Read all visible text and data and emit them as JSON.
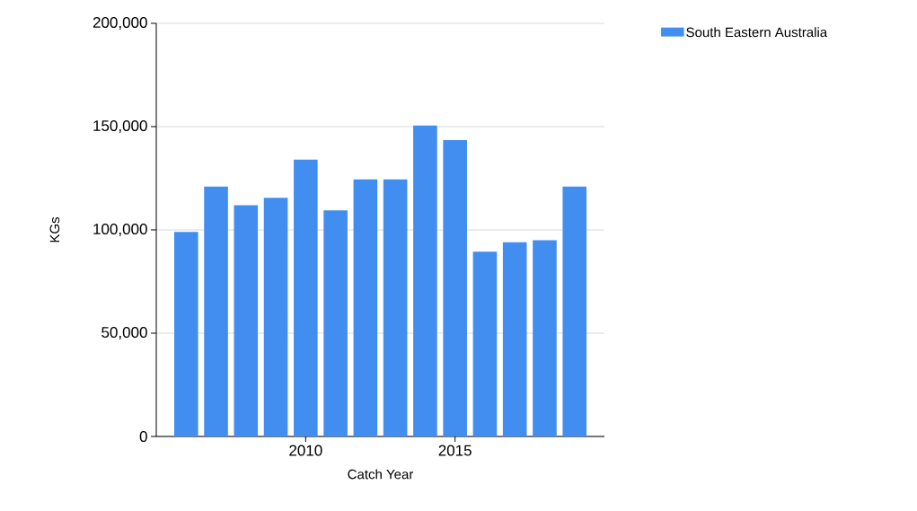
{
  "chart_data": {
    "type": "bar",
    "xlabel": "Catch Year",
    "ylabel": "KGs",
    "x": [
      2006,
      2007,
      2008,
      2009,
      2010,
      2011,
      2012,
      2013,
      2014,
      2015,
      2016,
      2017,
      2018,
      2019
    ],
    "series": [
      {
        "name": "South Eastern Australia",
        "color": "#428ef0",
        "values": [
          99000,
          121000,
          112000,
          115500,
          134000,
          109500,
          124500,
          124500,
          150500,
          143500,
          89500,
          94000,
          95000,
          121000
        ]
      }
    ],
    "xlim": [
      2005,
      2020
    ],
    "xticks": [
      2010,
      2015
    ],
    "ylim": [
      0,
      200000
    ],
    "yticks": [
      {
        "value": 0,
        "label": "0"
      },
      {
        "value": 50000,
        "label": "50,000"
      },
      {
        "value": 100000,
        "label": "100,000"
      },
      {
        "value": 150000,
        "label": "150,000"
      },
      {
        "value": 200000,
        "label": "200,000"
      }
    ],
    "grid": "y",
    "legend": "top right"
  }
}
